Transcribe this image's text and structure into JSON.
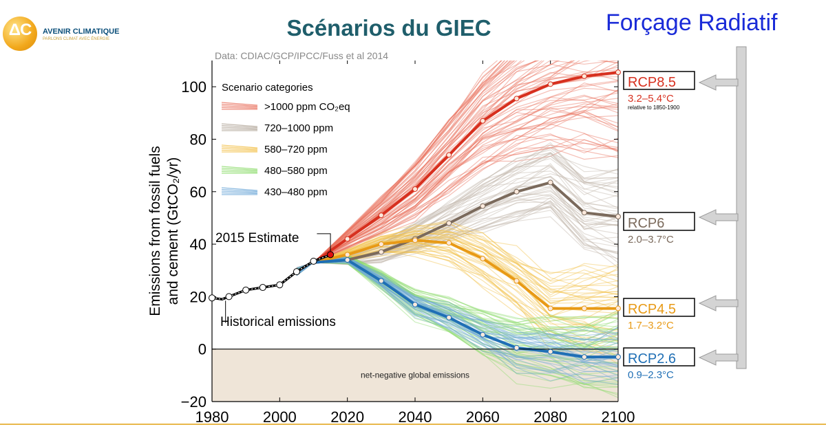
{
  "logo": {
    "glyph": "ΔC",
    "name": "AVENIR CLIMATIQUE",
    "tagline": "PARLONS CLIMAT AVEC ÉNERGIE"
  },
  "title": "Scénarios du GIEC",
  "forcage_label": "Forçage Radiatif",
  "colors": {
    "rcp85": "#d7301f",
    "rcp6": "#7b6a5c",
    "rcp45": "#e89a16",
    "rcp26": "#1f6fb5",
    "forcage": "#1a2bd8"
  },
  "chart_data": {
    "type": "line",
    "source": "Data: CDIAC/GCP/IPCC/Fuss et al 2014",
    "ylabel_line1": "Emissions from fossil fuels",
    "ylabel_line2": "and cement (GtCO₂/yr)",
    "xlim": [
      1980,
      2100
    ],
    "ylim": [
      -20,
      110
    ],
    "xticks": [
      "1980",
      "2000",
      "2020",
      "2040",
      "2060",
      "2080",
      "2100"
    ],
    "yticks": [
      "−20",
      "0",
      "20",
      "40",
      "60",
      "80",
      "100"
    ],
    "legend_title": "Scenario categories",
    "legend": [
      {
        "label": ">1000 ppm CO₂eq",
        "color": "#e8705e"
      },
      {
        "label": "720–1000 ppm",
        "color": "#b3a79b"
      },
      {
        "label": "580–720 ppm",
        "color": "#f2c04a"
      },
      {
        "label": "480–580 ppm",
        "color": "#8fdc6e"
      },
      {
        "label": "430–480 ppm",
        "color": "#6fa9d8"
      }
    ],
    "historical": {
      "label": "Historical emissions",
      "points": [
        [
          1980,
          19.5
        ],
        [
          1983,
          19
        ],
        [
          1985,
          20
        ],
        [
          1990,
          22.5
        ],
        [
          1995,
          23.5
        ],
        [
          2000,
          24.5
        ],
        [
          2005,
          29.5
        ],
        [
          2010,
          33.5
        ],
        [
          2013,
          35
        ],
        [
          2015,
          35.8
        ]
      ]
    },
    "estimate_label": "2015 Estimate",
    "estimate_point": [
      2015,
      36
    ],
    "negative_region_label": "net-negative global emissions",
    "series": [
      {
        "name": "RCP8.5",
        "range": "3.2–5.4°C",
        "note": "relative to 1850-1900",
        "color": "#d7301f",
        "points": [
          [
            2010,
            33
          ],
          [
            2020,
            42
          ],
          [
            2030,
            51
          ],
          [
            2040,
            61
          ],
          [
            2050,
            74
          ],
          [
            2060,
            87
          ],
          [
            2070,
            95.5
          ],
          [
            2080,
            101
          ],
          [
            2090,
            104
          ],
          [
            2100,
            105.5
          ]
        ]
      },
      {
        "name": "RCP6",
        "range": "2.0–3.7°C",
        "color": "#7b6a5c",
        "points": [
          [
            2010,
            33
          ],
          [
            2020,
            34
          ],
          [
            2030,
            37
          ],
          [
            2040,
            42
          ],
          [
            2050,
            48
          ],
          [
            2060,
            54.5
          ],
          [
            2070,
            60
          ],
          [
            2080,
            63.5
          ],
          [
            2090,
            52
          ],
          [
            2100,
            50.5
          ]
        ]
      },
      {
        "name": "RCP4.5",
        "range": "1.7–3.2°C",
        "color": "#e89a16",
        "points": [
          [
            2010,
            33
          ],
          [
            2020,
            36
          ],
          [
            2030,
            40
          ],
          [
            2040,
            41.5
          ],
          [
            2050,
            40.5
          ],
          [
            2060,
            34.5
          ],
          [
            2070,
            26
          ],
          [
            2080,
            15.5
          ],
          [
            2090,
            15.5
          ],
          [
            2100,
            15.5
          ]
        ]
      },
      {
        "name": "RCP2.6",
        "range": "0.9–2.3°C",
        "color": "#1f6fb5",
        "points": [
          [
            2010,
            33
          ],
          [
            2020,
            34
          ],
          [
            2030,
            26
          ],
          [
            2040,
            17
          ],
          [
            2050,
            12
          ],
          [
            2060,
            5.5
          ],
          [
            2070,
            0.5
          ],
          [
            2080,
            -1
          ],
          [
            2090,
            -3
          ],
          [
            2100,
            -3
          ]
        ]
      }
    ]
  }
}
